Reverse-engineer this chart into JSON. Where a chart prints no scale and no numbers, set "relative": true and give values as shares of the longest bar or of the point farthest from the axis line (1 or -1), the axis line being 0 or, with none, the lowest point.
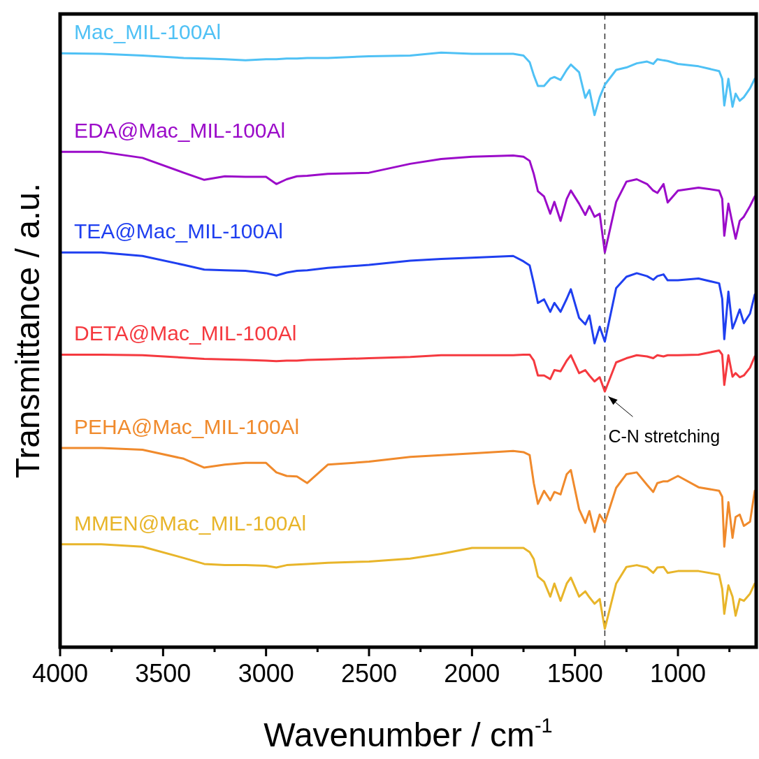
{
  "chart_data": {
    "type": "line",
    "relative": true,
    "xlabel": "Wavenumber / cm$^{-1}$",
    "ylabel": "Transmittance / a.u.",
    "xlim": [
      4000,
      620
    ],
    "xticks": [
      4000,
      {
        "value": 3750,
        "label": null
      },
      3500,
      {
        "value": 3250,
        "label": null
      },
      3000,
      {
        "value": 2750,
        "label": null
      },
      2500,
      {
        "value": 2250,
        "label": null
      },
      2000,
      {
        "value": 1750,
        "label": null
      },
      1500,
      {
        "value": 1250,
        "label": null
      },
      1000,
      {
        "value": 750,
        "label": null
      }
    ],
    "x": [
      4000,
      3800,
      3600,
      3400,
      3300,
      3200,
      3100,
      3000,
      2950,
      2900,
      2850,
      2800,
      2700,
      2500,
      2300,
      2150,
      2000,
      1800,
      1750,
      1720,
      1700,
      1680,
      1650,
      1620,
      1600,
      1570,
      1540,
      1520,
      1480,
      1450,
      1430,
      1405,
      1380,
      1355,
      1300,
      1250,
      1200,
      1150,
      1120,
      1100,
      1070,
      1050,
      1000,
      900,
      800,
      785,
      775,
      755,
      735,
      720,
      700,
      680,
      650,
      627
    ],
    "series": [
      {
        "name": "Mac_MIL-100Al",
        "color": "#4fc1f5",
        "values": [
          0.999,
          0.998,
          0.995,
          0.991,
          0.99,
          0.989,
          0.987,
          0.989,
          0.989,
          0.99,
          0.99,
          0.991,
          0.991,
          0.994,
          0.995,
          1.0,
          0.998,
          0.998,
          0.995,
          0.984,
          0.962,
          0.944,
          0.944,
          0.956,
          0.959,
          0.954,
          0.971,
          0.98,
          0.967,
          0.924,
          0.937,
          0.895,
          0.925,
          0.946,
          0.971,
          0.975,
          0.982,
          0.985,
          0.981,
          0.989,
          0.987,
          0.986,
          0.981,
          0.977,
          0.969,
          0.956,
          0.911,
          0.956,
          0.909,
          0.931,
          0.919,
          0.925,
          0.94,
          0.956
        ]
      },
      {
        "name": "EDA@Mac_MIL-100Al",
        "color": "#9b0bc9",
        "values": [
          0.833,
          0.833,
          0.823,
          0.798,
          0.786,
          0.792,
          0.791,
          0.791,
          0.779,
          0.787,
          0.792,
          0.793,
          0.796,
          0.798,
          0.813,
          0.821,
          0.825,
          0.827,
          0.825,
          0.818,
          0.796,
          0.767,
          0.758,
          0.729,
          0.749,
          0.717,
          0.754,
          0.768,
          0.746,
          0.727,
          0.742,
          0.724,
          0.729,
          0.664,
          0.749,
          0.783,
          0.787,
          0.779,
          0.768,
          0.764,
          0.779,
          0.748,
          0.768,
          0.773,
          0.768,
          0.754,
          0.692,
          0.746,
          0.712,
          0.687,
          0.717,
          0.724,
          0.742,
          0.758
        ]
      },
      {
        "name": "TEA@Mac_MIL-100Al",
        "color": "#1f3ff0",
        "values": [
          0.664,
          0.664,
          0.658,
          0.643,
          0.635,
          0.634,
          0.633,
          0.629,
          0.625,
          0.63,
          0.633,
          0.634,
          0.638,
          0.643,
          0.65,
          0.653,
          0.655,
          0.658,
          0.649,
          0.642,
          0.612,
          0.579,
          0.585,
          0.564,
          0.579,
          0.564,
          0.586,
          0.602,
          0.554,
          0.543,
          0.558,
          0.511,
          0.539,
          0.514,
          0.604,
          0.623,
          0.629,
          0.624,
          0.618,
          0.624,
          0.627,
          0.617,
          0.617,
          0.62,
          0.612,
          0.586,
          0.518,
          0.598,
          0.536,
          0.549,
          0.568,
          0.545,
          0.561,
          0.593
        ]
      },
      {
        "name": "DETA@Mac_MIL-100Al",
        "color": "#f5393f",
        "values": [
          0.492,
          0.492,
          0.491,
          0.487,
          0.485,
          0.484,
          0.483,
          0.482,
          0.481,
          0.482,
          0.482,
          0.483,
          0.484,
          0.486,
          0.488,
          0.491,
          0.491,
          0.491,
          0.492,
          0.492,
          0.482,
          0.457,
          0.457,
          0.451,
          0.466,
          0.464,
          0.482,
          0.491,
          0.461,
          0.466,
          0.457,
          0.447,
          0.454,
          0.43,
          0.479,
          0.486,
          0.491,
          0.489,
          0.486,
          0.491,
          0.489,
          0.491,
          0.491,
          0.492,
          0.499,
          0.492,
          0.441,
          0.491,
          0.455,
          0.461,
          0.454,
          0.457,
          0.47,
          0.489
        ]
      },
      {
        "name": "PEHA@Mac_MIL-100Al",
        "color": "#f08a2c",
        "values": [
          0.335,
          0.335,
          0.332,
          0.317,
          0.302,
          0.307,
          0.31,
          0.31,
          0.294,
          0.288,
          0.287,
          0.276,
          0.307,
          0.312,
          0.32,
          0.323,
          0.326,
          0.33,
          0.328,
          0.323,
          0.276,
          0.241,
          0.263,
          0.247,
          0.261,
          0.257,
          0.291,
          0.298,
          0.232,
          0.209,
          0.229,
          0.194,
          0.223,
          0.209,
          0.268,
          0.291,
          0.294,
          0.273,
          0.261,
          0.276,
          0.279,
          0.279,
          0.288,
          0.269,
          0.263,
          0.253,
          0.169,
          0.244,
          0.184,
          0.219,
          0.223,
          0.204,
          0.211,
          0.263
        ]
      },
      {
        "name": "MMEN@Mac_MIL-100Al",
        "color": "#e8b52a",
        "values": [
          0.173,
          0.173,
          0.169,
          0.15,
          0.14,
          0.138,
          0.138,
          0.137,
          0.134,
          0.138,
          0.139,
          0.14,
          0.142,
          0.144,
          0.149,
          0.157,
          0.167,
          0.167,
          0.167,
          0.16,
          0.148,
          0.119,
          0.11,
          0.085,
          0.107,
          0.078,
          0.107,
          0.117,
          0.085,
          0.094,
          0.084,
          0.073,
          0.081,
          0.031,
          0.107,
          0.135,
          0.138,
          0.134,
          0.125,
          0.134,
          0.135,
          0.125,
          0.128,
          0.128,
          0.122,
          0.098,
          0.056,
          0.104,
          0.085,
          0.053,
          0.081,
          0.078,
          0.09,
          0.107
        ]
      }
    ],
    "ref_lines": [
      {
        "axis": "x",
        "value": 1355,
        "line_style": "dashed",
        "color": "#333333"
      }
    ],
    "annotations": [
      {
        "text": "C-N stretching",
        "x": 1355,
        "y": 0.43
      }
    ]
  }
}
